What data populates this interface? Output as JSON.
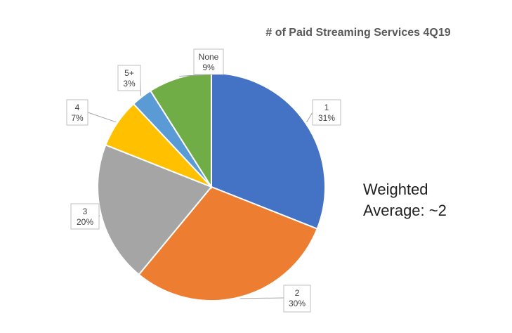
{
  "chart_data": {
    "type": "pie",
    "title": "# of Paid Streaming Services 4Q19",
    "slices": [
      {
        "label": "1",
        "value": 31,
        "percent_label": "31%",
        "color": "#4472C4"
      },
      {
        "label": "2",
        "value": 30,
        "percent_label": "30%",
        "color": "#ED7D31"
      },
      {
        "label": "3",
        "value": 20,
        "percent_label": "20%",
        "color": "#A5A5A5"
      },
      {
        "label": "4",
        "value": 7,
        "percent_label": "7%",
        "color": "#FFC000"
      },
      {
        "label": "5+",
        "value": 3,
        "percent_label": "3%",
        "color": "#5B9BD5"
      },
      {
        "label": "None",
        "value": 9,
        "percent_label": "9%",
        "color": "#70AD47"
      }
    ],
    "legend": "none"
  },
  "annotation": {
    "line1": "Weighted",
    "line2": "Average: ~2"
  }
}
